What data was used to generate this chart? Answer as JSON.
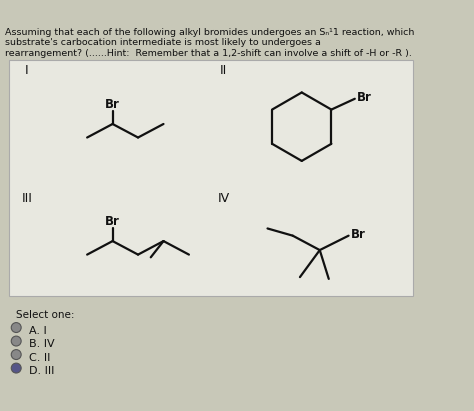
{
  "title_lines": [
    "Assuming that each of the following alkyl bromides undergoes an Sₙ¹1 reaction, which",
    "substrate's carbocation intermediate is most likely to undergoes a",
    "rearrangement? (......Hint:  Remember that a 1,2-shift can involve a shift of -H or -R )."
  ],
  "bg_color": "#c8c8b8",
  "box_bg": "#e8e8e0",
  "text_color": "#111111",
  "select_label": "Select one:",
  "options": [
    "A. I",
    "B. IV",
    "C. II",
    "D. III"
  ],
  "selected_option": 3,
  "circle_colors": [
    "#888888",
    "#888888",
    "#888888",
    "#555588"
  ]
}
